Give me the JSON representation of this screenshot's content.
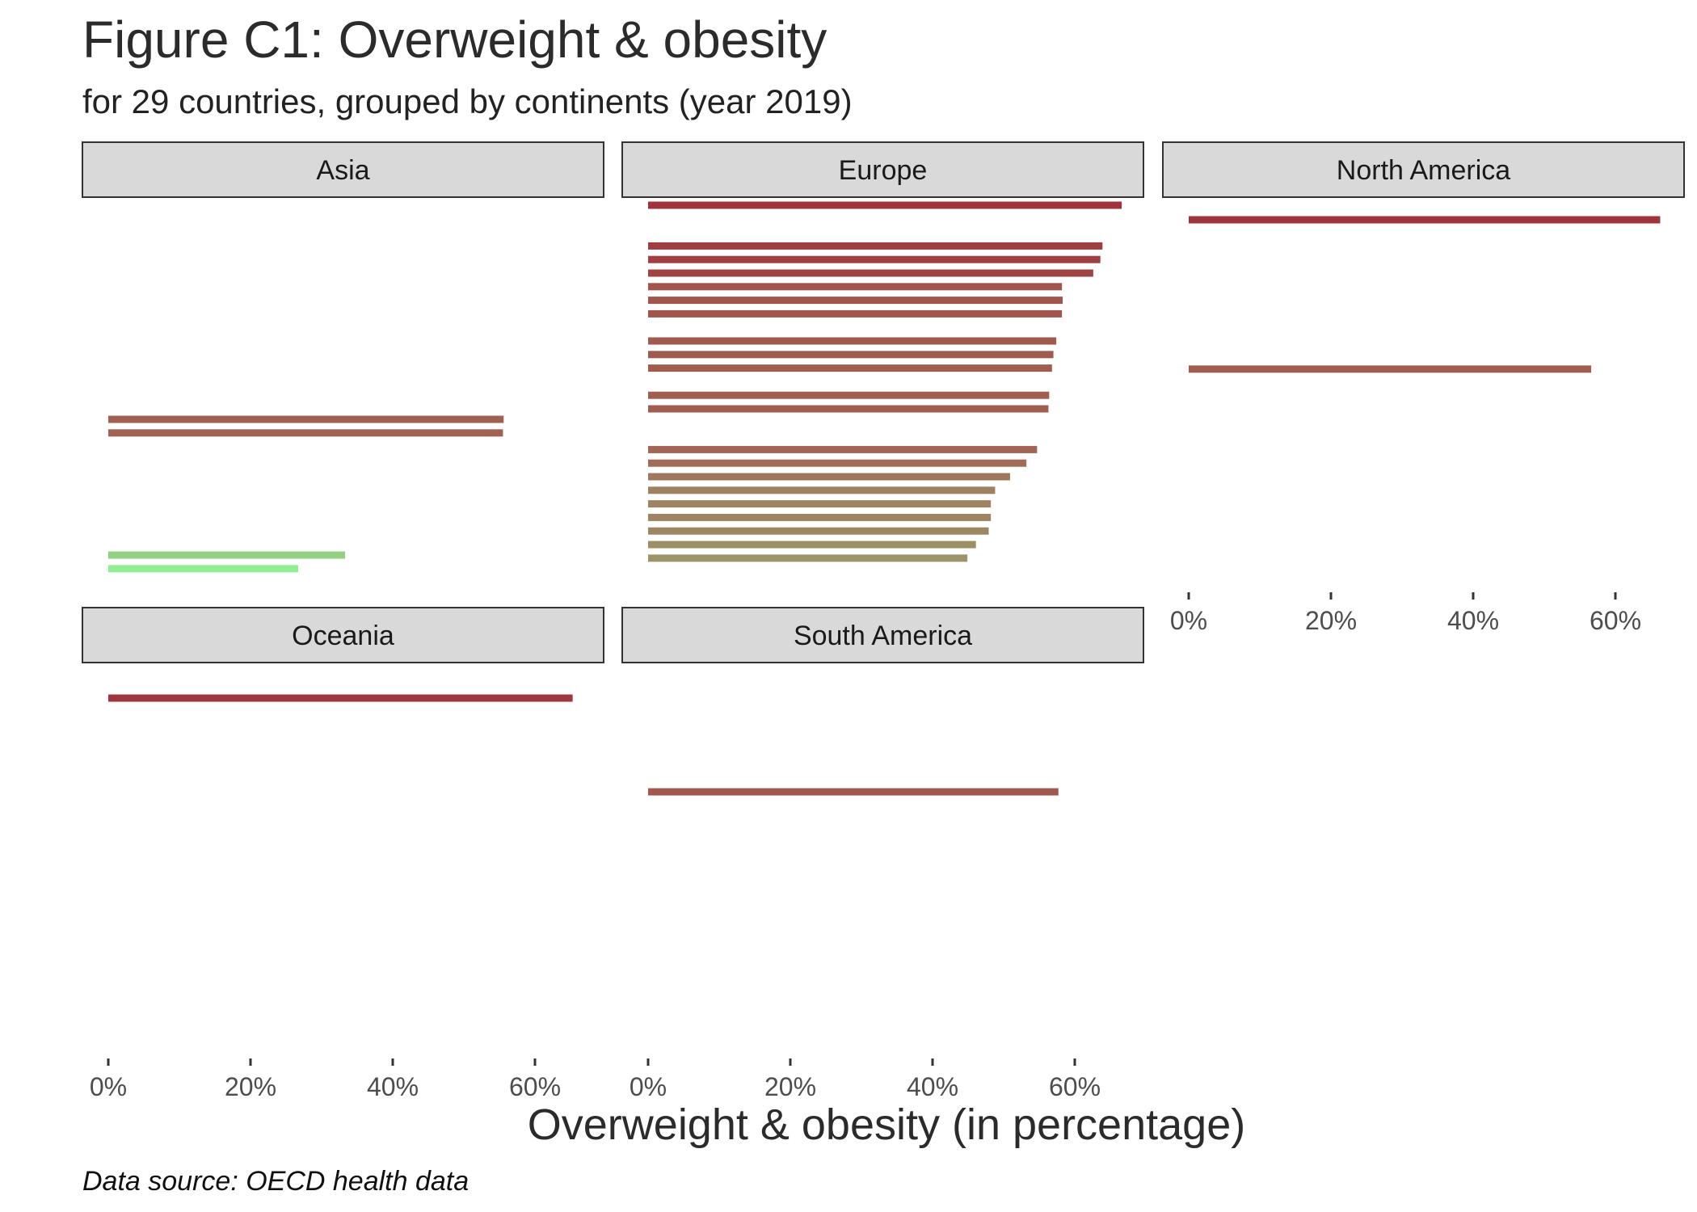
{
  "title": "Figure C1: Overweight & obesity",
  "subtitle": "for 29 countries, grouped by continents (year 2019)",
  "caption": "Data source: OECD health data",
  "chart_data": {
    "type": "bar",
    "orientation": "horizontal",
    "facet_by": "continent",
    "xlabel": "Overweight & obesity (in percentage)",
    "ylabel": "",
    "xlim": [
      0,
      70
    ],
    "x_ticks": [
      0,
      20,
      40,
      60
    ],
    "x_tick_labels": [
      "0%",
      "20%",
      "40%",
      "60%"
    ],
    "grid": false,
    "legend": "none",
    "color_scale": {
      "low": "#90ee90",
      "mid": "#a0725a",
      "high": "#a0303a",
      "limits": [
        27,
        67
      ]
    },
    "panels": [
      {
        "name": "Asia",
        "values": [
          55.6,
          55.5,
          33.3,
          26.7
        ]
      },
      {
        "name": "Europe",
        "values": [
          66.6,
          63.9,
          63.6,
          62.6,
          58.2,
          58.3,
          58.2,
          57.4,
          57.0,
          56.8,
          56.4,
          56.3,
          54.7,
          53.2,
          50.9,
          48.8,
          48.2,
          48.2,
          47.9,
          46.1,
          44.9
        ]
      },
      {
        "name": "North America",
        "values": [
          66.3,
          56.6
        ]
      },
      {
        "name": "Oceania",
        "values": [
          65.3
        ]
      },
      {
        "name": "South America",
        "values": [
          57.7
        ]
      }
    ]
  }
}
